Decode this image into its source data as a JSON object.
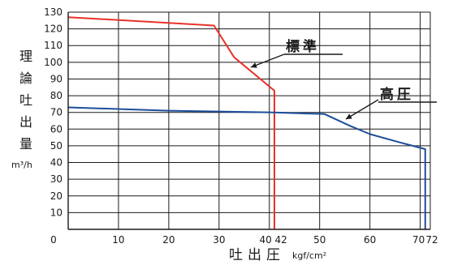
{
  "chart_data": {
    "type": "line",
    "xlim": [
      0,
      72
    ],
    "ylim": [
      0,
      130
    ],
    "x_ticks": [
      0,
      10,
      20,
      30,
      40,
      42,
      50,
      60,
      70,
      72
    ],
    "y_ticks": [
      10,
      20,
      30,
      40,
      50,
      60,
      70,
      80,
      90,
      100,
      110,
      120,
      130
    ],
    "x_zero_label": "0",
    "ylabel": "理論吐出量",
    "yunit": "m³/h",
    "xlabel": "吐出圧",
    "xunit": "kgf/cm²",
    "grid": true,
    "series": [
      {
        "name": "標準",
        "color": "#e8322a",
        "points": [
          [
            0,
            127
          ],
          [
            29,
            122
          ],
          [
            33,
            103
          ],
          [
            41,
            83
          ],
          [
            41,
            0
          ]
        ]
      },
      {
        "name": "高圧",
        "color": "#1d4e9a",
        "points": [
          [
            0,
            73
          ],
          [
            20,
            71
          ],
          [
            41,
            70
          ],
          [
            51,
            69
          ],
          [
            56,
            62
          ],
          [
            60,
            57
          ],
          [
            66,
            52
          ],
          [
            71,
            48
          ],
          [
            71,
            0
          ]
        ]
      }
    ],
    "annotations": [
      {
        "text": "標準",
        "series": "標準",
        "at": [
          35,
          104
        ]
      },
      {
        "text": "高圧",
        "series": "高圧",
        "at": [
          57,
          66
        ]
      }
    ]
  }
}
